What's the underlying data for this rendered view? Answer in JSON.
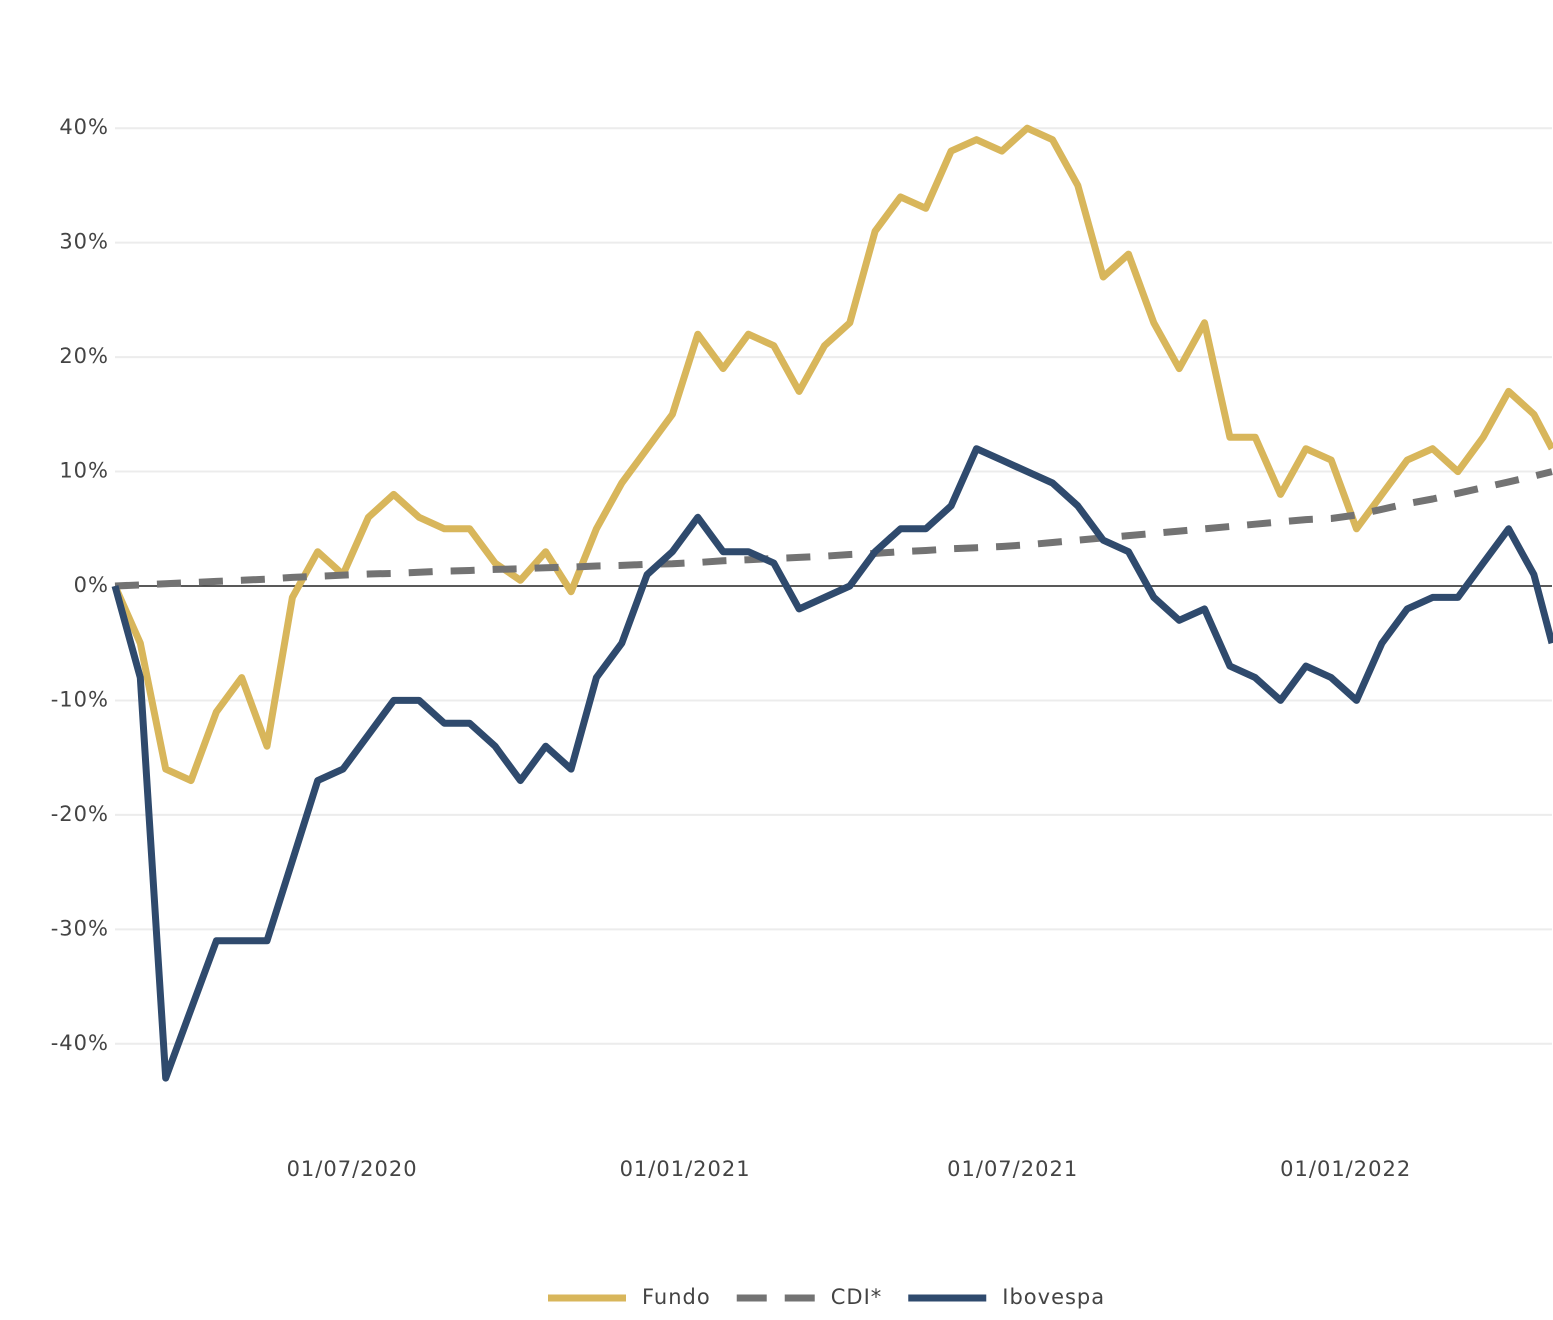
{
  "chart_data": {
    "type": "line",
    "x": [
      "2020-02-21",
      "2020-03-06",
      "2020-03-20",
      "2020-04-03",
      "2020-04-17",
      "2020-05-01",
      "2020-05-15",
      "2020-05-29",
      "2020-06-12",
      "2020-06-26",
      "2020-07-10",
      "2020-07-24",
      "2020-08-07",
      "2020-08-21",
      "2020-09-04",
      "2020-09-18",
      "2020-10-02",
      "2020-10-16",
      "2020-10-30",
      "2020-11-13",
      "2020-11-27",
      "2020-12-11",
      "2020-12-25",
      "2021-01-08",
      "2021-01-22",
      "2021-02-05",
      "2021-02-19",
      "2021-03-05",
      "2021-03-19",
      "2021-04-02",
      "2021-04-16",
      "2021-04-30",
      "2021-05-14",
      "2021-05-28",
      "2021-06-11",
      "2021-06-25",
      "2021-07-09",
      "2021-07-23",
      "2021-08-06",
      "2021-08-20",
      "2021-09-03",
      "2021-09-17",
      "2021-10-01",
      "2021-10-15",
      "2021-10-29",
      "2021-11-12",
      "2021-11-26",
      "2021-12-10",
      "2021-12-24",
      "2022-01-07",
      "2022-01-21",
      "2022-02-04",
      "2022-02-18",
      "2022-03-04",
      "2022-03-18",
      "2022-04-01",
      "2022-04-15",
      "2022-04-25"
    ],
    "series": [
      {
        "name": "Fundo",
        "color": "#d8b65b",
        "style": "solid",
        "values": [
          0,
          -5,
          -16,
          -17,
          -11,
          -8,
          -14,
          -1,
          3,
          1,
          6,
          8,
          6,
          5,
          5,
          2,
          0.5,
          3,
          -0.5,
          5,
          9,
          12,
          15,
          22,
          19,
          22,
          21,
          17,
          21,
          23,
          31,
          34,
          33,
          38,
          39,
          38,
          40,
          39,
          35,
          27,
          29,
          23,
          19,
          23,
          13,
          13,
          8,
          12,
          11,
          5,
          8,
          11,
          12,
          10,
          13,
          17,
          15,
          12
        ]
      },
      {
        "name": "CDI*",
        "color": "#737373",
        "style": "dashed",
        "values": [
          0,
          0.1,
          0.2,
          0.3,
          0.4,
          0.5,
          0.6,
          0.75,
          0.85,
          0.95,
          1.05,
          1.1,
          1.2,
          1.3,
          1.35,
          1.45,
          1.5,
          1.6,
          1.65,
          1.75,
          1.8,
          1.9,
          1.95,
          2.05,
          2.2,
          2.3,
          2.4,
          2.5,
          2.6,
          2.75,
          2.85,
          3.0,
          3.1,
          3.25,
          3.35,
          3.45,
          3.6,
          3.8,
          4.0,
          4.2,
          4.4,
          4.6,
          4.8,
          5.0,
          5.2,
          5.4,
          5.6,
          5.8,
          5.9,
          6.2,
          6.7,
          7.2,
          7.6,
          8.1,
          8.6,
          9.1,
          9.6,
          10
        ]
      },
      {
        "name": "Ibovespa",
        "color": "#2f4a6d",
        "style": "solid",
        "values": [
          0,
          -8,
          -43,
          -37,
          -31,
          -31,
          -31,
          -24,
          -17,
          -16,
          -13,
          -10,
          -10,
          -12,
          -12,
          -14,
          -17,
          -14,
          -16,
          -8,
          -5,
          1,
          3,
          6,
          3,
          3,
          2,
          -2,
          -1,
          0,
          3,
          5,
          5,
          7,
          12,
          11,
          10,
          9,
          7,
          4,
          3,
          -1,
          -3,
          -2,
          -7,
          -8,
          -10,
          -7,
          -8,
          -10,
          -5,
          -2,
          -1,
          -1,
          2,
          5,
          1,
          -5
        ]
      }
    ],
    "xlim": [
      "2020-02-21",
      "2022-04-25"
    ],
    "xticks": [
      {
        "value": "2020-07-01",
        "label": "01/07/2020"
      },
      {
        "value": "2021-01-01",
        "label": "01/01/2021"
      },
      {
        "value": "2021-07-01",
        "label": "01/07/2021"
      },
      {
        "value": "2022-01-01",
        "label": "01/01/2022"
      }
    ],
    "ylim": [
      -45,
      45
    ],
    "yticks": [
      {
        "value": 40,
        "label": "40%"
      },
      {
        "value": 30,
        "label": "30%"
      },
      {
        "value": 20,
        "label": "20%"
      },
      {
        "value": 10,
        "label": "10%"
      },
      {
        "value": 0,
        "label": "0%"
      },
      {
        "value": -10,
        "label": "-10%"
      },
      {
        "value": -20,
        "label": "-20%"
      },
      {
        "value": -30,
        "label": "-30%"
      },
      {
        "value": -40,
        "label": "-40%"
      }
    ],
    "grid": true,
    "legend": "bottom"
  }
}
